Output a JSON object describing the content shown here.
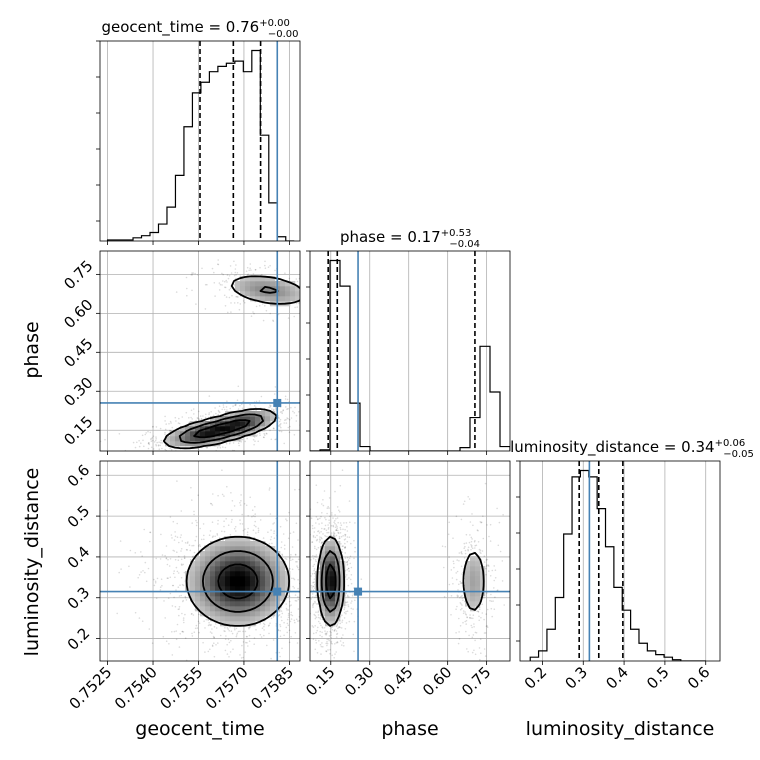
{
  "chart_data": {
    "type": "corner",
    "truth_color": "#4682b4",
    "parameters": [
      {
        "name": "geocent_time",
        "label": "geocent_time",
        "range": [
          0.75225,
          0.75885
        ],
        "ticks": [
          0.7525,
          0.754,
          0.7555,
          0.757,
          0.7585
        ],
        "tick_labels": [
          "0.7525",
          "0.7540",
          "0.7555",
          "0.7570",
          "0.7585"
        ],
        "truth": 0.7581,
        "quantiles": [
          0.75555,
          0.75665,
          0.75755
        ],
        "title_main": "geocent_time = 0.76",
        "title_sup": "+0.00",
        "title_sub": "−0.00",
        "hist_edges_start": 0.7525,
        "hist_bin_width": 0.00028,
        "hist_counts": [
          1,
          1,
          1,
          3,
          5,
          8,
          16,
          32,
          62,
          108,
          140,
          150,
          160,
          165,
          168,
          170,
          160,
          180,
          100,
          36,
          4,
          0
        ]
      },
      {
        "name": "phase",
        "label": "phase",
        "range": [
          0.07,
          0.84
        ],
        "ticks": [
          0.15,
          0.3,
          0.45,
          0.6,
          0.75
        ],
        "tick_labels": [
          "0.15",
          "0.30",
          "0.45",
          "0.60",
          "0.75"
        ],
        "truth": 0.255,
        "quantiles": [
          0.14,
          0.175,
          0.705
        ],
        "title_main": "phase = 0.17",
        "title_sup": "+0.53",
        "title_sub": "−0.04",
        "hist_edges_start": 0.07,
        "hist_bin_width": 0.0385,
        "hist_counts": [
          0,
          1,
          171,
          148,
          43,
          4,
          0,
          0,
          0,
          0,
          0,
          0,
          0,
          0,
          0,
          3,
          30,
          94,
          53,
          4
        ]
      },
      {
        "name": "luminosity_distance",
        "label": "luminosity_distance",
        "range": [
          0.145,
          0.635
        ],
        "ticks": [
          0.2,
          0.3,
          0.4,
          0.5,
          0.6
        ],
        "tick_labels": [
          "0.2",
          "0.3",
          "0.4",
          "0.5",
          "0.6"
        ],
        "truth": 0.315,
        "quantiles": [
          0.29,
          0.338,
          0.397
        ],
        "title_main": "luminosity_distance = 0.34",
        "title_sup": "+0.06",
        "title_sub": "−0.05",
        "hist_edges_start": 0.17,
        "hist_bin_width": 0.0205,
        "hist_counts": [
          3,
          8,
          25,
          50,
          100,
          145,
          150,
          145,
          120,
          90,
          58,
          40,
          25,
          14,
          8,
          5,
          3,
          1,
          0,
          0,
          0
        ]
      }
    ],
    "blobs": {
      "1_0": [
        {
          "cx": 0.7558,
          "cy": 0.14,
          "sx": 0.00075,
          "sy": 0.03,
          "rho": 0.55,
          "w": 0.45
        },
        {
          "cx": 0.757,
          "cy": 0.18,
          "sx": 0.0006,
          "sy": 0.028,
          "rho": 0.45,
          "w": 0.33
        },
        {
          "cx": 0.7578,
          "cy": 0.69,
          "sx": 0.0008,
          "sy": 0.035,
          "rho": -0.35,
          "w": 0.22
        }
      ],
      "2_0": [
        {
          "cx": 0.7568,
          "cy": 0.34,
          "sx": 0.00085,
          "sy": 0.055,
          "rho": 0.0,
          "w": 1.0
        }
      ],
      "2_1": [
        {
          "cx": 0.15,
          "cy": 0.34,
          "sx": 0.025,
          "sy": 0.055,
          "rho": 0.0,
          "w": 0.76
        },
        {
          "cx": 0.7,
          "cy": 0.34,
          "sx": 0.03,
          "sy": 0.055,
          "rho": 0.0,
          "w": 0.24
        }
      ]
    }
  }
}
